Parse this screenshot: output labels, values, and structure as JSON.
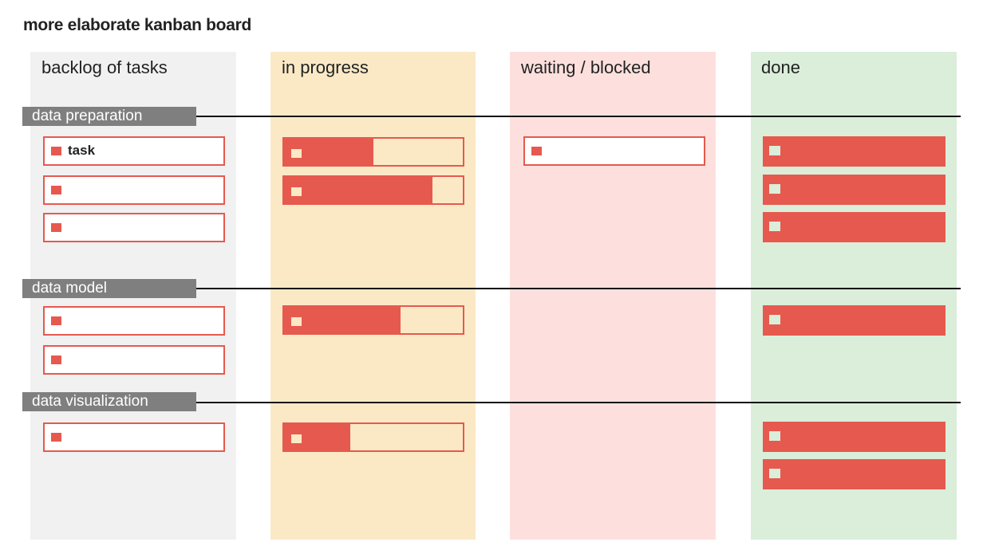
{
  "title": "more elaborate kanban board",
  "columns": [
    {
      "label": "backlog of tasks",
      "color": "#f1f1f1"
    },
    {
      "label": "in progress",
      "color": "#fbe9c6"
    },
    {
      "label": "waiting / blocked",
      "color": "#fde0dd"
    },
    {
      "label": "done",
      "color": "#daeeda"
    }
  ],
  "swimlanes": [
    {
      "label": "data preparation"
    },
    {
      "label": "data model"
    },
    {
      "label": "data visualization"
    }
  ],
  "backlog_card_label": "task",
  "in_progress_fractions": {
    "data_preparation": [
      0.5,
      0.83
    ],
    "data_model": [
      0.65
    ],
    "data_visualization": [
      0.37
    ]
  },
  "accent_color": "#e6594e"
}
